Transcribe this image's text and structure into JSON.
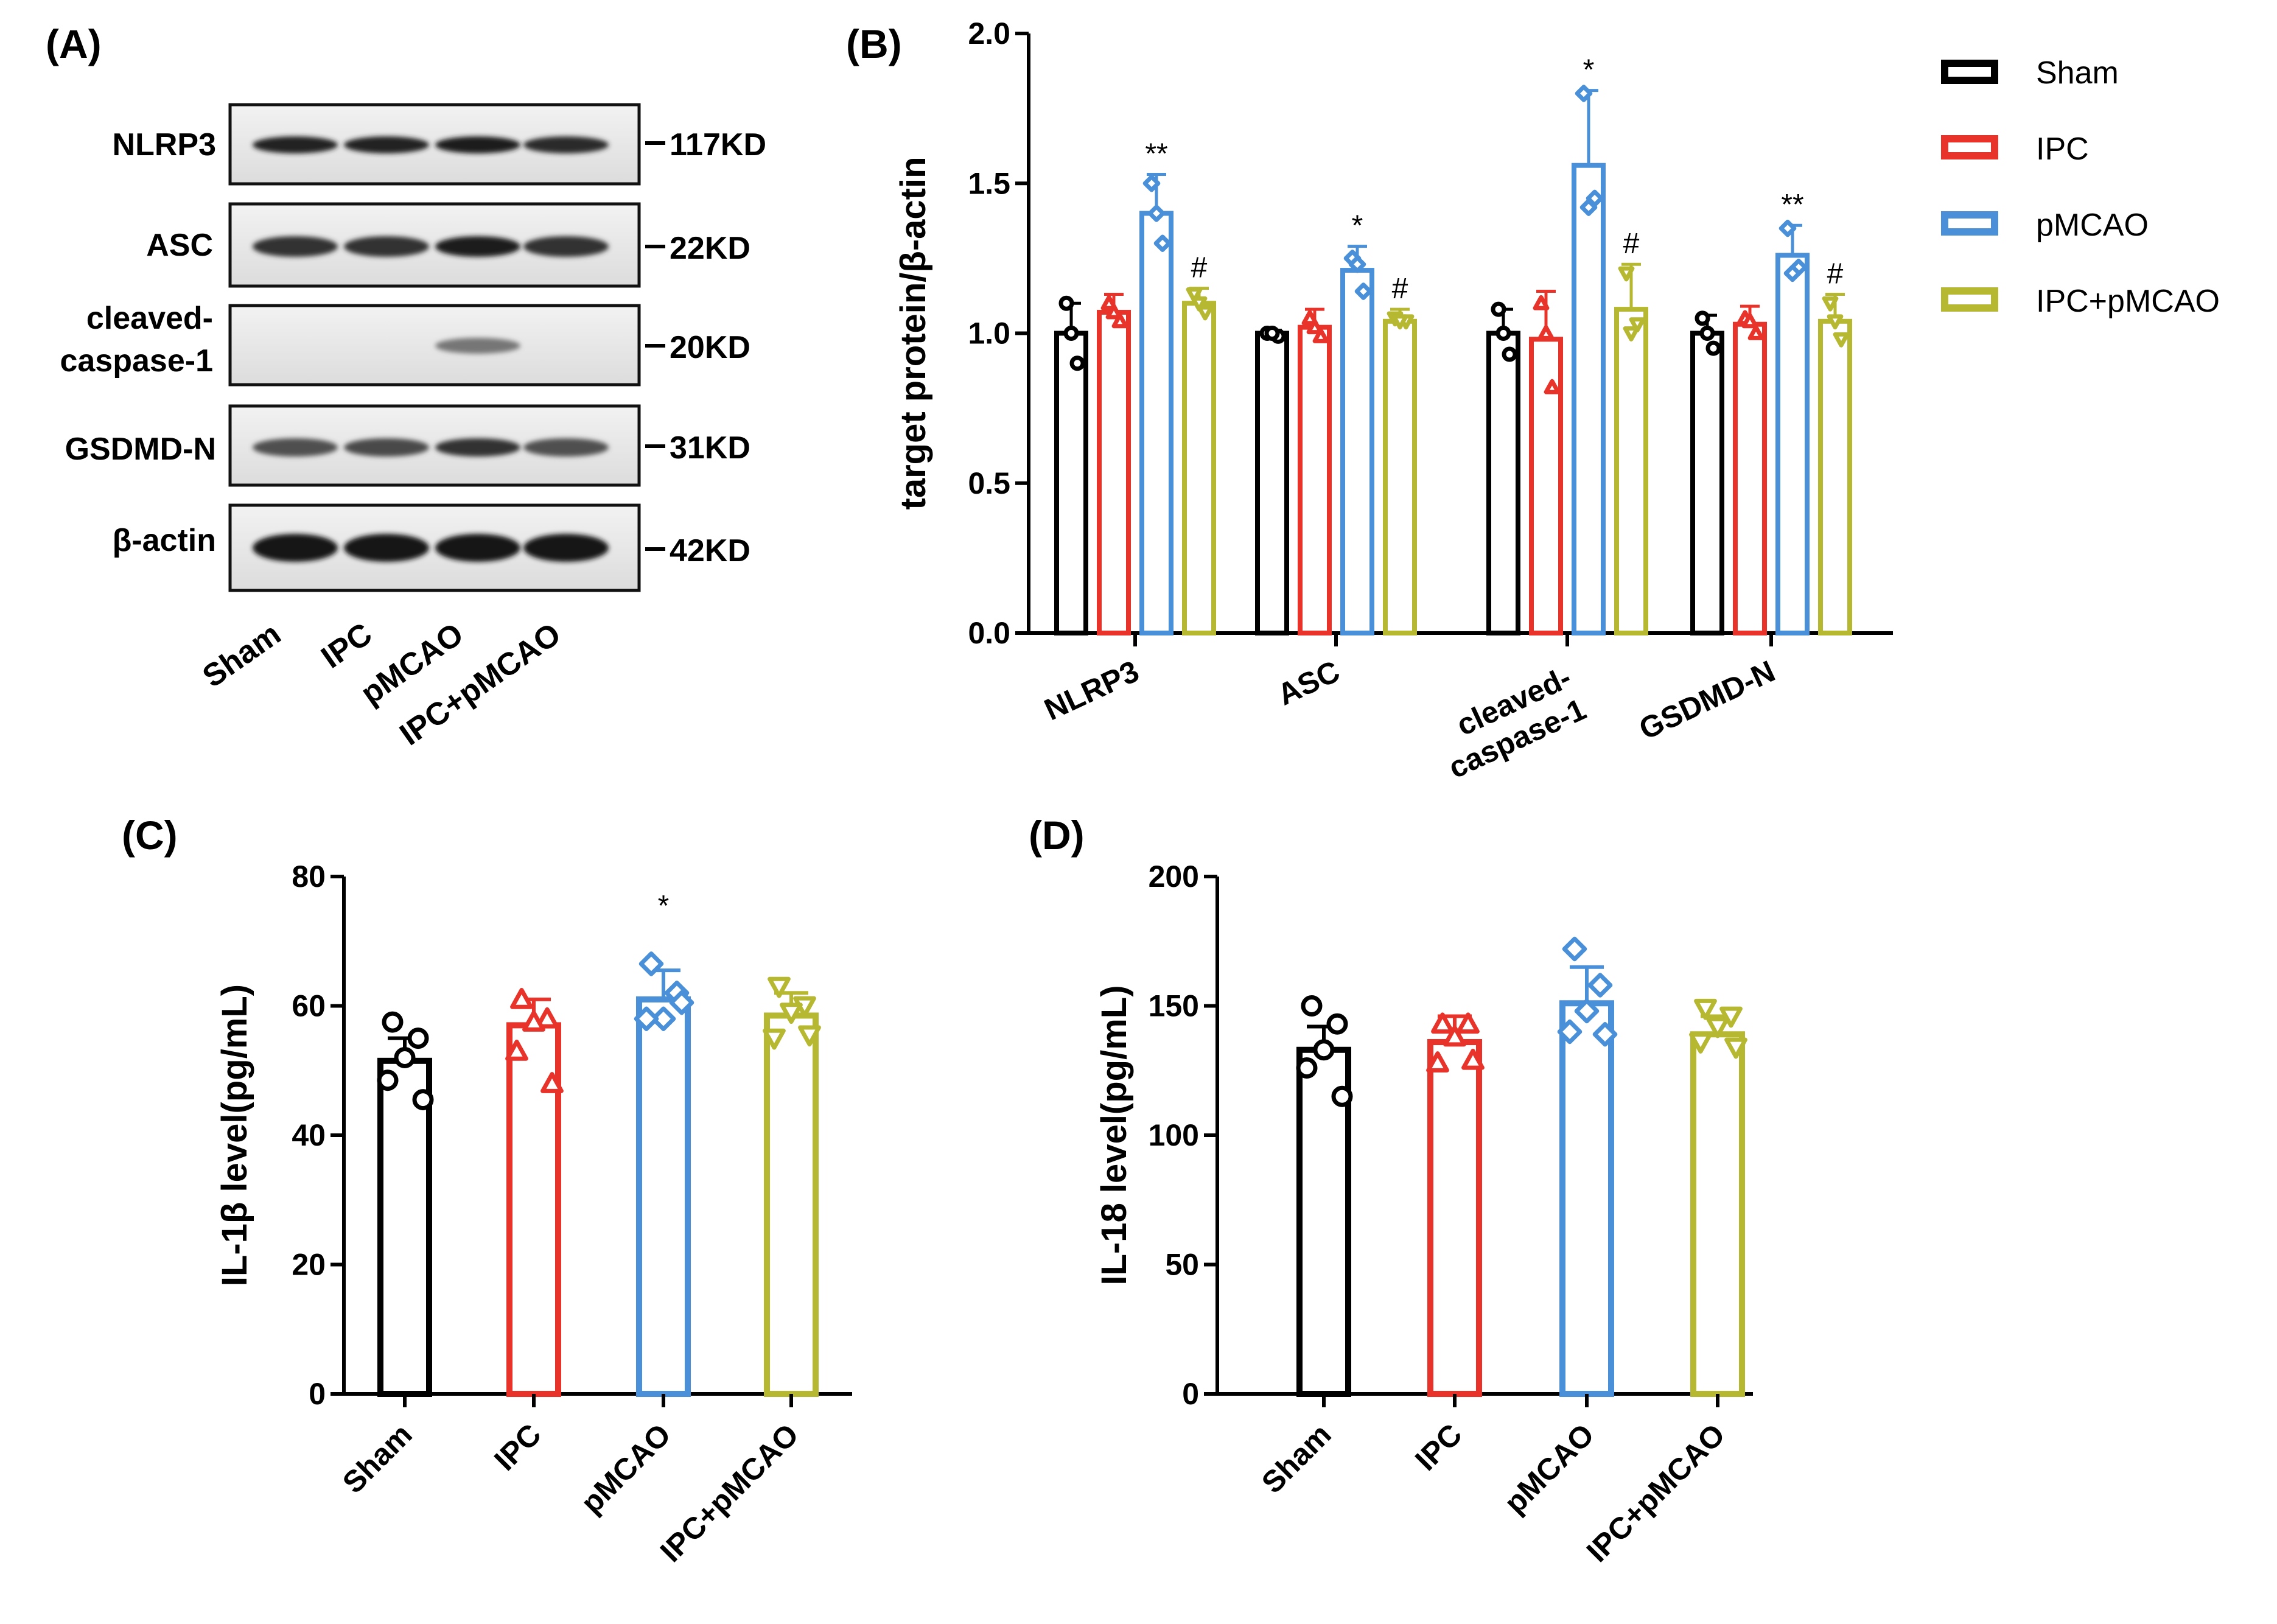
{
  "colors": {
    "Sham": "#000000",
    "IPC": "#e8332a",
    "pMCAO": "#4a90d9",
    "IPC+pMCAO": "#b5b830"
  },
  "panels": {
    "A": "(A)",
    "B": "(B)",
    "C": "(C)",
    "D": "(D)"
  },
  "western_blot": {
    "proteins": [
      {
        "name": "NLRP3",
        "size": "117KD"
      },
      {
        "name": "ASC",
        "size": "22KD"
      },
      {
        "name": "cleaved-caspase-1",
        "size": "20KD"
      },
      {
        "name": "GSDMD-N",
        "size": "31KD"
      },
      {
        "name": "β-actin",
        "size": "42KD"
      }
    ],
    "lanes": [
      "Sham",
      "IPC",
      "pMCAO",
      "IPC+pMCAO"
    ],
    "label_lines": {
      "cleaved1": "cleaved-",
      "cleaved2": "caspase-1"
    }
  },
  "chart_data": [
    {
      "id": "B",
      "type": "bar",
      "title": "",
      "ylabel": "target protein/β-actin",
      "ylim": [
        0,
        2.0
      ],
      "yticks": [
        "0.0",
        "0.5",
        "1.0",
        "1.5",
        "2.0"
      ],
      "categories": [
        "NLRP3",
        "ASC",
        "cleaved-caspase-1",
        "GSDMD-N"
      ],
      "category_lines": [
        [
          "NLRP3"
        ],
        [
          "ASC"
        ],
        [
          "cleaved-",
          "caspase-1"
        ],
        [
          "GSDMD-N"
        ]
      ],
      "legend": [
        "Sham",
        "IPC",
        "pMCAO",
        "IPC+pMCAO"
      ],
      "legend_position": "top-right",
      "series": [
        {
          "name": "Sham",
          "values": [
            1.0,
            1.0,
            1.0,
            1.0
          ],
          "errors": [
            0.1,
            0.01,
            0.08,
            0.06
          ],
          "points": [
            [
              1.1,
              0.9,
              1.0
            ],
            [
              1.0,
              0.99,
              1.0
            ],
            [
              1.08,
              0.93,
              1.0
            ],
            [
              1.05,
              0.95,
              1.0
            ]
          ]
        },
        {
          "name": "IPC",
          "values": [
            1.07,
            1.02,
            0.98,
            1.03
          ],
          "errors": [
            0.06,
            0.06,
            0.16,
            0.06
          ],
          "points": [
            [
              1.1,
              1.04,
              1.07
            ],
            [
              1.05,
              0.99,
              1.02
            ],
            [
              1.1,
              0.82,
              1.0
            ],
            [
              1.05,
              1.0,
              1.04
            ]
          ]
        },
        {
          "name": "pMCAO",
          "values": [
            1.4,
            1.21,
            1.56,
            1.26
          ],
          "errors": [
            0.13,
            0.08,
            0.25,
            0.1
          ],
          "points": [
            [
              1.5,
              1.3,
              1.4
            ],
            [
              1.25,
              1.14,
              1.23
            ],
            [
              1.8,
              1.45,
              1.42
            ],
            [
              1.35,
              1.22,
              1.2
            ]
          ]
        },
        {
          "name": "IPC+pMCAO",
          "values": [
            1.1,
            1.04,
            1.08,
            1.04
          ],
          "errors": [
            0.05,
            0.04,
            0.15,
            0.09
          ],
          "points": [
            [
              1.13,
              1.07,
              1.1
            ],
            [
              1.05,
              1.04,
              1.04
            ],
            [
              1.2,
              1.03,
              1.0
            ],
            [
              1.1,
              0.98,
              1.04
            ]
          ]
        }
      ],
      "significance": [
        {
          "category": 0,
          "series": 2,
          "text": "**"
        },
        {
          "category": 0,
          "series": 3,
          "text": "#"
        },
        {
          "category": 1,
          "series": 2,
          "text": "*"
        },
        {
          "category": 1,
          "series": 3,
          "text": "#"
        },
        {
          "category": 2,
          "series": 2,
          "text": "*"
        },
        {
          "category": 2,
          "series": 3,
          "text": "#"
        },
        {
          "category": 3,
          "series": 2,
          "text": "**"
        },
        {
          "category": 3,
          "series": 3,
          "text": "#"
        }
      ]
    },
    {
      "id": "C",
      "type": "bar",
      "title": "",
      "ylabel": "IL-1β level(pg/mL)",
      "ylim": [
        0,
        80
      ],
      "yticks": [
        "0",
        "20",
        "40",
        "60",
        "80"
      ],
      "categories": [
        "Sham",
        "IPC",
        "pMCAO",
        "IPC+pMCAO"
      ],
      "values": [
        51.5,
        57.0,
        61.0,
        58.5
      ],
      "errors": [
        3.5,
        4.0,
        4.5,
        3.5
      ],
      "points": [
        [
          57.5,
          55.0,
          52.0,
          48.5,
          45.5
        ],
        [
          61.0,
          58.0,
          57.5,
          53.0,
          48.0
        ],
        [
          66.5,
          62.0,
          58.0,
          58.0,
          60.5
        ],
        [
          63.0,
          60.0,
          59.0,
          55.0,
          55.5
        ]
      ],
      "significance": [
        {
          "category": 2,
          "text": "*"
        }
      ]
    },
    {
      "id": "D",
      "type": "bar",
      "title": "",
      "ylabel": "IL-18 level(pg/mL)",
      "ylim": [
        0,
        200
      ],
      "yticks": [
        "0",
        "50",
        "100",
        "150",
        "200"
      ],
      "categories": [
        "Sham",
        "IPC",
        "pMCAO",
        "IPC+pMCAO"
      ],
      "values": [
        133,
        136,
        151,
        139
      ],
      "errors": [
        9,
        10,
        14,
        7
      ],
      "points": [
        [
          150,
          143,
          133,
          126,
          115
        ],
        [
          143,
          143,
          138,
          128,
          129
        ],
        [
          172,
          158,
          148,
          140,
          139
        ],
        [
          149,
          146,
          142,
          136,
          134
        ]
      ],
      "significance": []
    }
  ]
}
